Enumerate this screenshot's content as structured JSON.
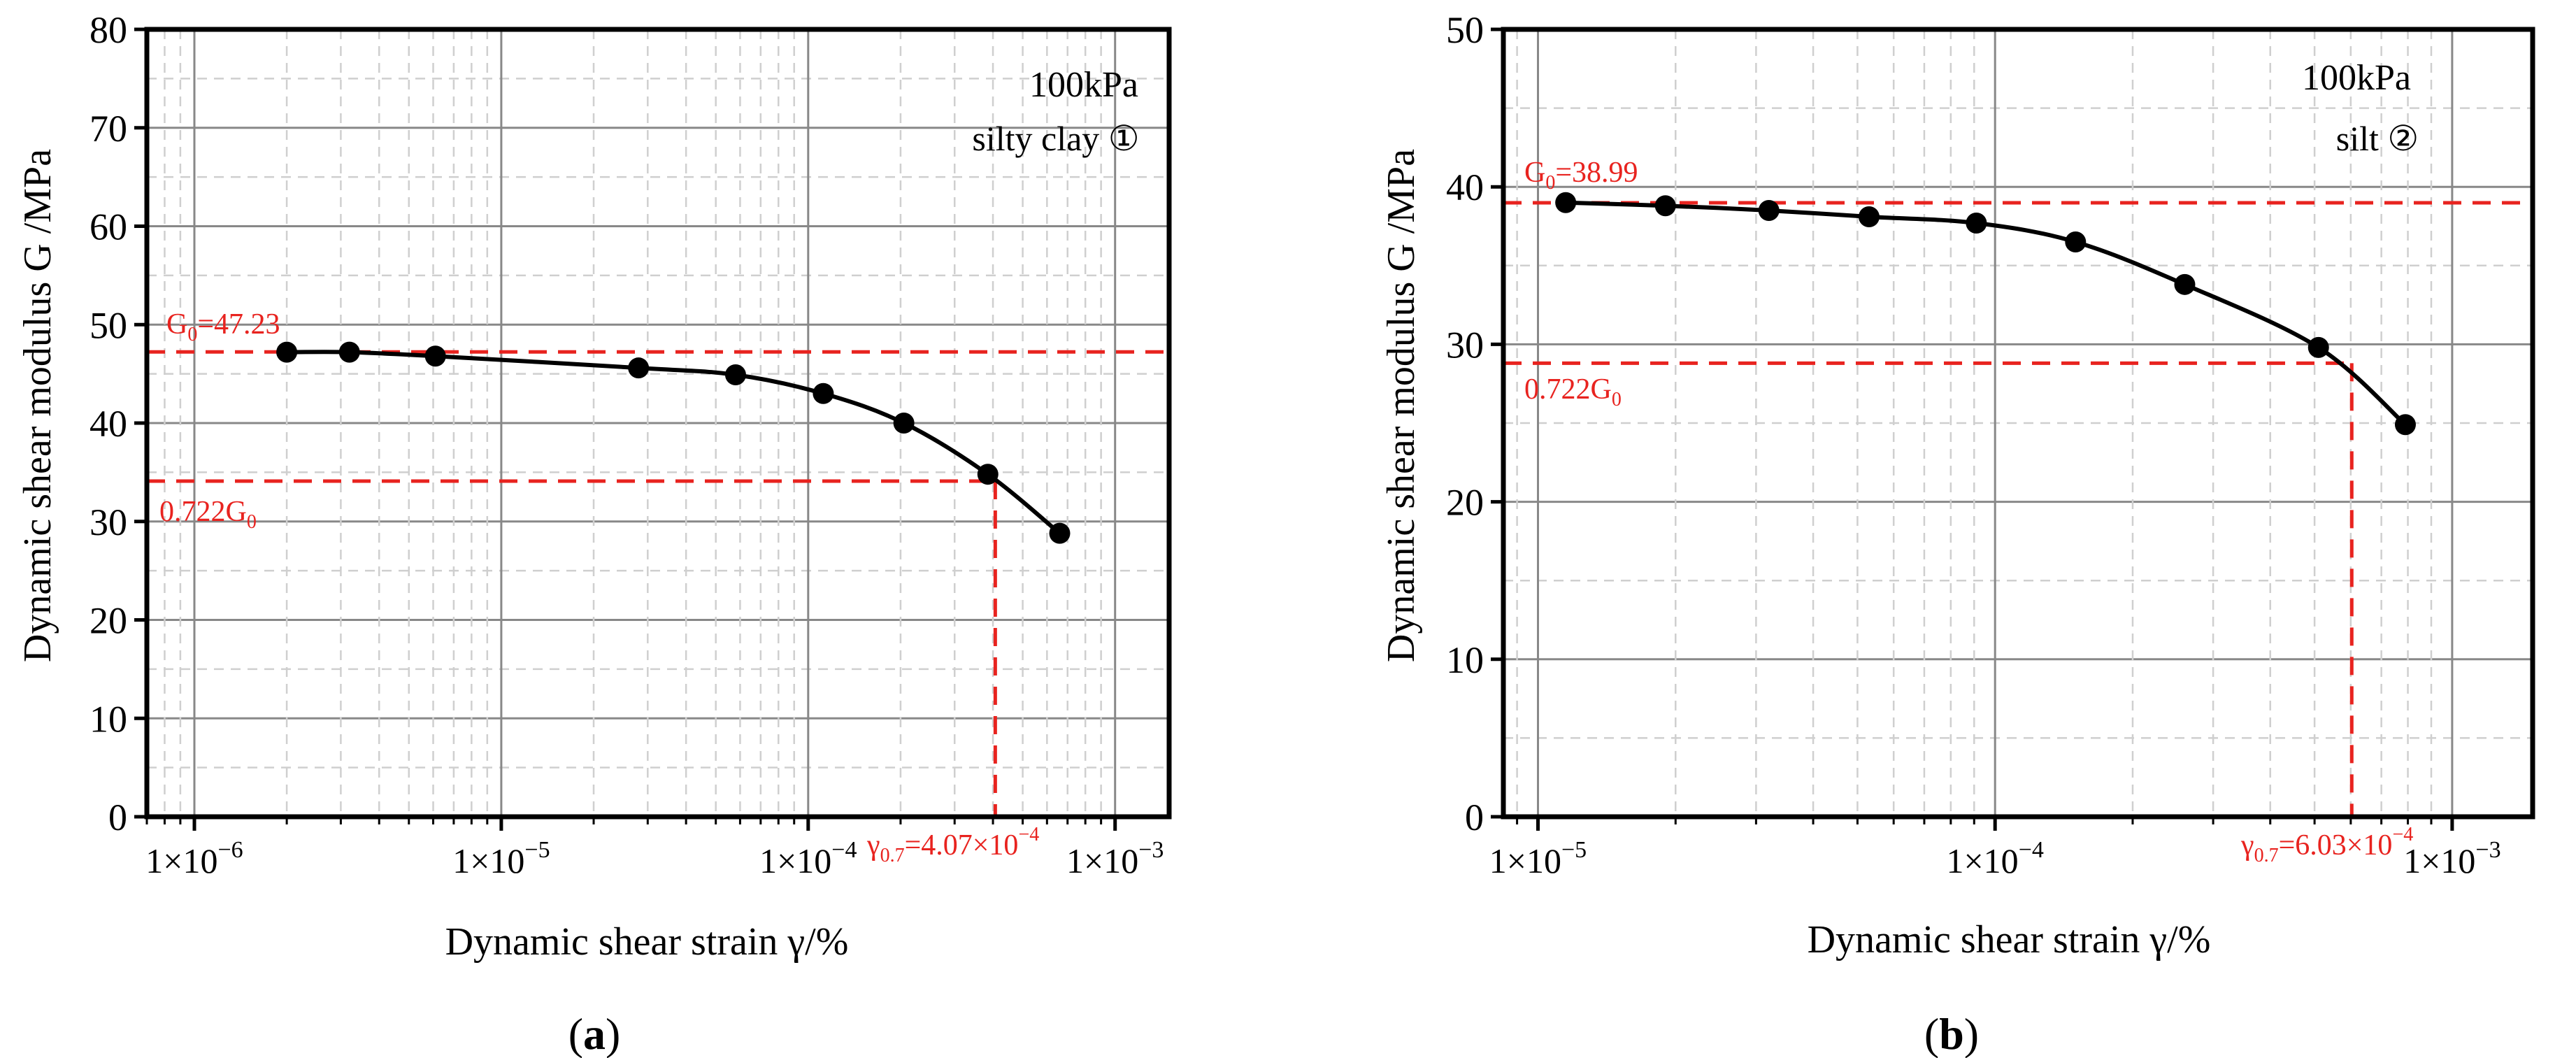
{
  "colors": {
    "axis": "#000000",
    "data": "#000000",
    "reference": "#e8231f",
    "grid_major": "#888888",
    "grid_minor": "#cfcfcf"
  },
  "chart_data": [
    {
      "type": "line",
      "panel_label": "a",
      "xscale": "log",
      "xlim": [
        7e-07,
        0.0015
      ],
      "ylim": [
        0,
        80
      ],
      "xlabel": "Dynamic shear strain γ/%",
      "ylabel": "Dynamic shear modulus G /MPa",
      "x_tick_labels": [
        {
          "value": 1e-06,
          "mant": "1×10",
          "exp": "−6"
        },
        {
          "value": 1e-05,
          "mant": "1×10",
          "exp": "−5"
        },
        {
          "value": 0.0001,
          "mant": "1×10",
          "exp": "−4"
        },
        {
          "value": 0.001,
          "mant": "1×10",
          "exp": "−3"
        }
      ],
      "y_ticks": [
        0,
        10,
        20,
        30,
        40,
        50,
        60,
        70,
        80
      ],
      "annotation_pressure": "100kPa",
      "annotation_soil": "silty clay ①",
      "series": [
        {
          "name": "silty clay ①",
          "x": [
            2e-06,
            3.2e-06,
            6.1e-06,
            2.8e-05,
            5.8e-05,
            0.000112,
            0.000205,
            0.000385,
            0.00066
          ],
          "y": [
            47.2,
            47.2,
            46.8,
            45.6,
            44.9,
            43.0,
            40.0,
            34.8,
            28.8
          ]
        }
      ],
      "reference": {
        "g0": 47.23,
        "g0_sub": "0",
        "g0_label_pre": "G",
        "g0_label_post": "=47.23",
        "g07": 34.1,
        "g07_label_pre": "0.722G",
        "g07_label_sub": "0",
        "gamma07": 0.000407,
        "gamma_label_pre": "γ",
        "gamma_label_sub": "0.7",
        "gamma_label_mid": "=4.07×10",
        "gamma_label_exp": "−4"
      }
    },
    {
      "type": "line",
      "panel_label": "b",
      "xscale": "log",
      "xlim": [
        8.4e-06,
        0.0015
      ],
      "ylim": [
        0,
        50
      ],
      "xlabel": "Dynamic shear strain γ/%",
      "ylabel": "Dynamic shear modulus G /MPa",
      "x_tick_labels": [
        {
          "value": 1e-05,
          "mant": "1×10",
          "exp": "−5"
        },
        {
          "value": 0.0001,
          "mant": "1×10",
          "exp": "−4"
        },
        {
          "value": 0.001,
          "mant": "1×10",
          "exp": "−3"
        }
      ],
      "y_ticks": [
        0,
        10,
        20,
        30,
        40,
        50
      ],
      "annotation_pressure": "100kPa",
      "annotation_soil": "silt ②",
      "series": [
        {
          "name": "silt ②",
          "x": [
            1.15e-05,
            1.9e-05,
            3.2e-05,
            5.3e-05,
            9.1e-05,
            0.00015,
            0.00026,
            0.00051,
            0.00079
          ],
          "y": [
            39.0,
            38.8,
            38.5,
            38.1,
            37.7,
            36.5,
            33.8,
            29.8,
            24.9
          ]
        }
      ],
      "reference": {
        "g0": 38.99,
        "g0_sub": "0",
        "g0_label_pre": "G",
        "g0_label_post": "=38.99",
        "g07": 28.8,
        "g07_label_pre": "0.722G",
        "g07_label_sub": "0",
        "gamma07": 0.000603,
        "gamma_label_pre": "γ",
        "gamma_label_sub": "0.7",
        "gamma_label_mid": "=6.03×10",
        "gamma_label_exp": "−4"
      }
    }
  ]
}
